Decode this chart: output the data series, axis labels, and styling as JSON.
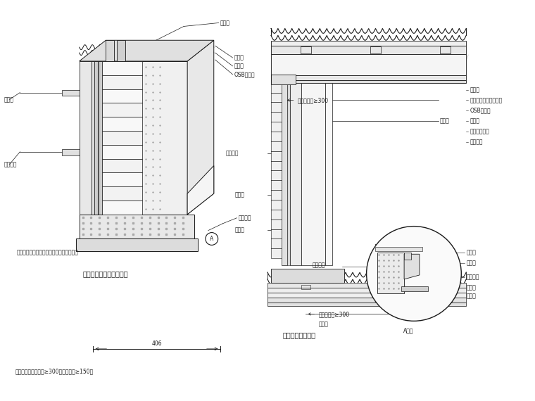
{
  "bg_color": "#ffffff",
  "line_color": "#000000",
  "figure_width": 7.6,
  "figure_height": 5.7,
  "dpi": 100,
  "labels": {
    "shui_tiao": "顺水条",
    "qiang_gu_zhu1": "墙骨柱",
    "qiang_gu_zhu2": "墙骨柱",
    "osb": "OSB结构板",
    "shui_tiao_left": "顺水条",
    "gua_ban_shi_mian": "挂板饰面",
    "bottom_note": "在相邻板上交错排列连接（钉在顺水条上）",
    "caption_left": "挂板外墙构造层次示意图",
    "mao_shuan": "预埋锚栓",
    "right_labels": [
      "石膏板",
      "墙管柱（内装保温棉）",
      "OSB结构板",
      "呼吸纸",
      "顺水条空气层",
      "外墙挂板"
    ],
    "label_huxi": "呼吸纸搭接≥300",
    "label_shui": "顺水条",
    "label_waiqiang": "外墙挂板",
    "label_shui2": "顺水条",
    "label_qiang": "墙骨柱",
    "label_waiqiang2": "外墙挂板",
    "label_huxi2": "呼吸纸搭接≥300",
    "label_shui3": "顺水条",
    "detail_labels_right": [
      "呼吸纸",
      "顺水条",
      "樱形垫片",
      "防虫网",
      "泛水板"
    ],
    "detail_label_left": "外墙挂板",
    "detail_title": "A大样",
    "caption_right": "挂板内外转角节点",
    "dim_val": "406",
    "note": "注：呼吸纸竖向搭接≥300，横向搭接≥150。",
    "A_marker": "A"
  }
}
